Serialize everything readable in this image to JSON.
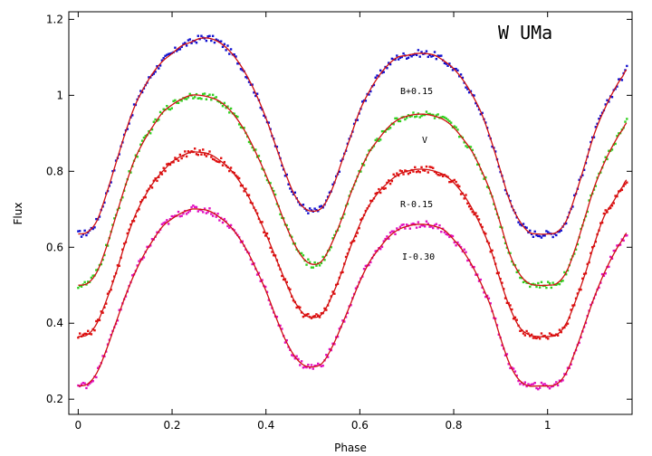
{
  "chart_data": {
    "type": "scatter",
    "title": "W UMa",
    "xlabel": "Phase",
    "ylabel": "Flux",
    "xlim": [
      -0.02,
      1.18
    ],
    "ylim": [
      0.16,
      1.22
    ],
    "xticks": [
      0,
      0.2,
      0.4,
      0.6,
      0.8,
      1
    ],
    "xtick_labels": [
      "0",
      "0.2",
      "0.4",
      "0.6",
      "0.8",
      "1"
    ],
    "yticks": [
      0.2,
      0.4,
      0.6,
      0.8,
      1,
      1.2
    ],
    "ytick_labels": [
      "0.2",
      "0.4",
      "0.6",
      "0.8",
      "1",
      "1.2"
    ],
    "grid": false,
    "fit_color": "#d01010",
    "series": [
      {
        "name": "B+0.15",
        "color": "#1010d0",
        "x": [
          0,
          0.02,
          0.04,
          0.06,
          0.08,
          0.1,
          0.12,
          0.14,
          0.16,
          0.18,
          0.2,
          0.22,
          0.24,
          0.26,
          0.28,
          0.3,
          0.32,
          0.34,
          0.36,
          0.38,
          0.4,
          0.42,
          0.44,
          0.46,
          0.48,
          0.5,
          0.52,
          0.54,
          0.56,
          0.58,
          0.6,
          0.62,
          0.64,
          0.66,
          0.68,
          0.7,
          0.72,
          0.74,
          0.76,
          0.78,
          0.8,
          0.82,
          0.84,
          0.86,
          0.88,
          0.9,
          0.92,
          0.94,
          0.96,
          0.98,
          1,
          1.02,
          1.04,
          1.06,
          1.08,
          1.1,
          1.12,
          1.14,
          1.16,
          1.17
        ],
        "values": [
          0.635,
          0.64,
          0.67,
          0.74,
          0.82,
          0.9,
          0.97,
          1.02,
          1.06,
          1.09,
          1.11,
          1.13,
          1.14,
          1.15,
          1.15,
          1.14,
          1.12,
          1.09,
          1.05,
          1.0,
          0.94,
          0.87,
          0.8,
          0.74,
          0.705,
          0.695,
          0.705,
          0.75,
          0.82,
          0.89,
          0.96,
          1.01,
          1.05,
          1.08,
          1.1,
          1.105,
          1.11,
          1.11,
          1.105,
          1.09,
          1.07,
          1.04,
          1.0,
          0.95,
          0.88,
          0.8,
          0.72,
          0.67,
          0.64,
          0.635,
          0.635,
          0.64,
          0.67,
          0.74,
          0.82,
          0.9,
          0.96,
          1.01,
          1.05,
          1.07
        ]
      },
      {
        "name": "V",
        "color": "#30d020",
        "x": [
          0,
          0.02,
          0.04,
          0.06,
          0.08,
          0.1,
          0.12,
          0.14,
          0.16,
          0.18,
          0.2,
          0.22,
          0.24,
          0.26,
          0.28,
          0.3,
          0.32,
          0.34,
          0.36,
          0.38,
          0.4,
          0.42,
          0.44,
          0.46,
          0.48,
          0.5,
          0.52,
          0.54,
          0.56,
          0.58,
          0.6,
          0.62,
          0.64,
          0.66,
          0.68,
          0.7,
          0.72,
          0.74,
          0.76,
          0.78,
          0.8,
          0.82,
          0.84,
          0.86,
          0.88,
          0.9,
          0.92,
          0.94,
          0.96,
          0.98,
          1,
          1.02,
          1.04,
          1.06,
          1.08,
          1.1,
          1.12,
          1.14,
          1.16,
          1.17
        ],
        "values": [
          0.5,
          0.505,
          0.535,
          0.6,
          0.68,
          0.76,
          0.83,
          0.88,
          0.92,
          0.955,
          0.975,
          0.99,
          1.0,
          1.0,
          0.995,
          0.985,
          0.965,
          0.935,
          0.895,
          0.845,
          0.79,
          0.73,
          0.665,
          0.61,
          0.57,
          0.555,
          0.565,
          0.61,
          0.67,
          0.74,
          0.8,
          0.85,
          0.885,
          0.915,
          0.935,
          0.945,
          0.95,
          0.95,
          0.945,
          0.935,
          0.915,
          0.885,
          0.85,
          0.8,
          0.74,
          0.66,
          0.58,
          0.53,
          0.505,
          0.5,
          0.5,
          0.505,
          0.535,
          0.6,
          0.68,
          0.76,
          0.82,
          0.87,
          0.91,
          0.93
        ]
      },
      {
        "name": "R-0.15",
        "color": "#e01010",
        "x": [
          0,
          0.02,
          0.04,
          0.06,
          0.08,
          0.1,
          0.12,
          0.14,
          0.16,
          0.18,
          0.2,
          0.22,
          0.24,
          0.26,
          0.28,
          0.3,
          0.32,
          0.34,
          0.36,
          0.38,
          0.4,
          0.42,
          0.44,
          0.46,
          0.48,
          0.5,
          0.52,
          0.54,
          0.56,
          0.58,
          0.6,
          0.62,
          0.64,
          0.66,
          0.68,
          0.7,
          0.72,
          0.74,
          0.76,
          0.78,
          0.8,
          0.82,
          0.84,
          0.86,
          0.88,
          0.9,
          0.92,
          0.94,
          0.96,
          0.98,
          1,
          1.02,
          1.04,
          1.06,
          1.08,
          1.1,
          1.12,
          1.14,
          1.16,
          1.17
        ],
        "values": [
          0.365,
          0.37,
          0.4,
          0.46,
          0.53,
          0.61,
          0.68,
          0.73,
          0.77,
          0.8,
          0.825,
          0.84,
          0.85,
          0.85,
          0.845,
          0.83,
          0.81,
          0.78,
          0.74,
          0.69,
          0.635,
          0.575,
          0.515,
          0.46,
          0.425,
          0.415,
          0.425,
          0.47,
          0.53,
          0.6,
          0.66,
          0.71,
          0.745,
          0.77,
          0.79,
          0.8,
          0.805,
          0.805,
          0.8,
          0.79,
          0.77,
          0.74,
          0.7,
          0.65,
          0.59,
          0.51,
          0.44,
          0.39,
          0.37,
          0.365,
          0.365,
          0.37,
          0.4,
          0.46,
          0.53,
          0.61,
          0.68,
          0.72,
          0.76,
          0.78
        ]
      },
      {
        "name": "I-0.30",
        "color": "#e010c0",
        "x": [
          0,
          0.02,
          0.04,
          0.06,
          0.08,
          0.1,
          0.12,
          0.14,
          0.16,
          0.18,
          0.2,
          0.22,
          0.24,
          0.26,
          0.28,
          0.3,
          0.32,
          0.34,
          0.36,
          0.38,
          0.4,
          0.42,
          0.44,
          0.46,
          0.48,
          0.5,
          0.52,
          0.54,
          0.56,
          0.58,
          0.6,
          0.62,
          0.64,
          0.66,
          0.68,
          0.7,
          0.72,
          0.74,
          0.76,
          0.78,
          0.8,
          0.82,
          0.84,
          0.86,
          0.88,
          0.9,
          0.92,
          0.94,
          0.96,
          0.98,
          1,
          1.02,
          1.04,
          1.06,
          1.08,
          1.1,
          1.12,
          1.14,
          1.16,
          1.17
        ],
        "values": [
          0.235,
          0.24,
          0.27,
          0.33,
          0.4,
          0.47,
          0.53,
          0.58,
          0.62,
          0.655,
          0.675,
          0.69,
          0.7,
          0.7,
          0.695,
          0.68,
          0.66,
          0.63,
          0.59,
          0.54,
          0.485,
          0.42,
          0.36,
          0.315,
          0.29,
          0.285,
          0.295,
          0.335,
          0.39,
          0.45,
          0.51,
          0.56,
          0.595,
          0.625,
          0.645,
          0.655,
          0.66,
          0.66,
          0.655,
          0.645,
          0.62,
          0.59,
          0.55,
          0.5,
          0.44,
          0.36,
          0.29,
          0.25,
          0.235,
          0.235,
          0.235,
          0.24,
          0.27,
          0.33,
          0.4,
          0.47,
          0.53,
          0.58,
          0.62,
          0.64
        ]
      }
    ]
  }
}
